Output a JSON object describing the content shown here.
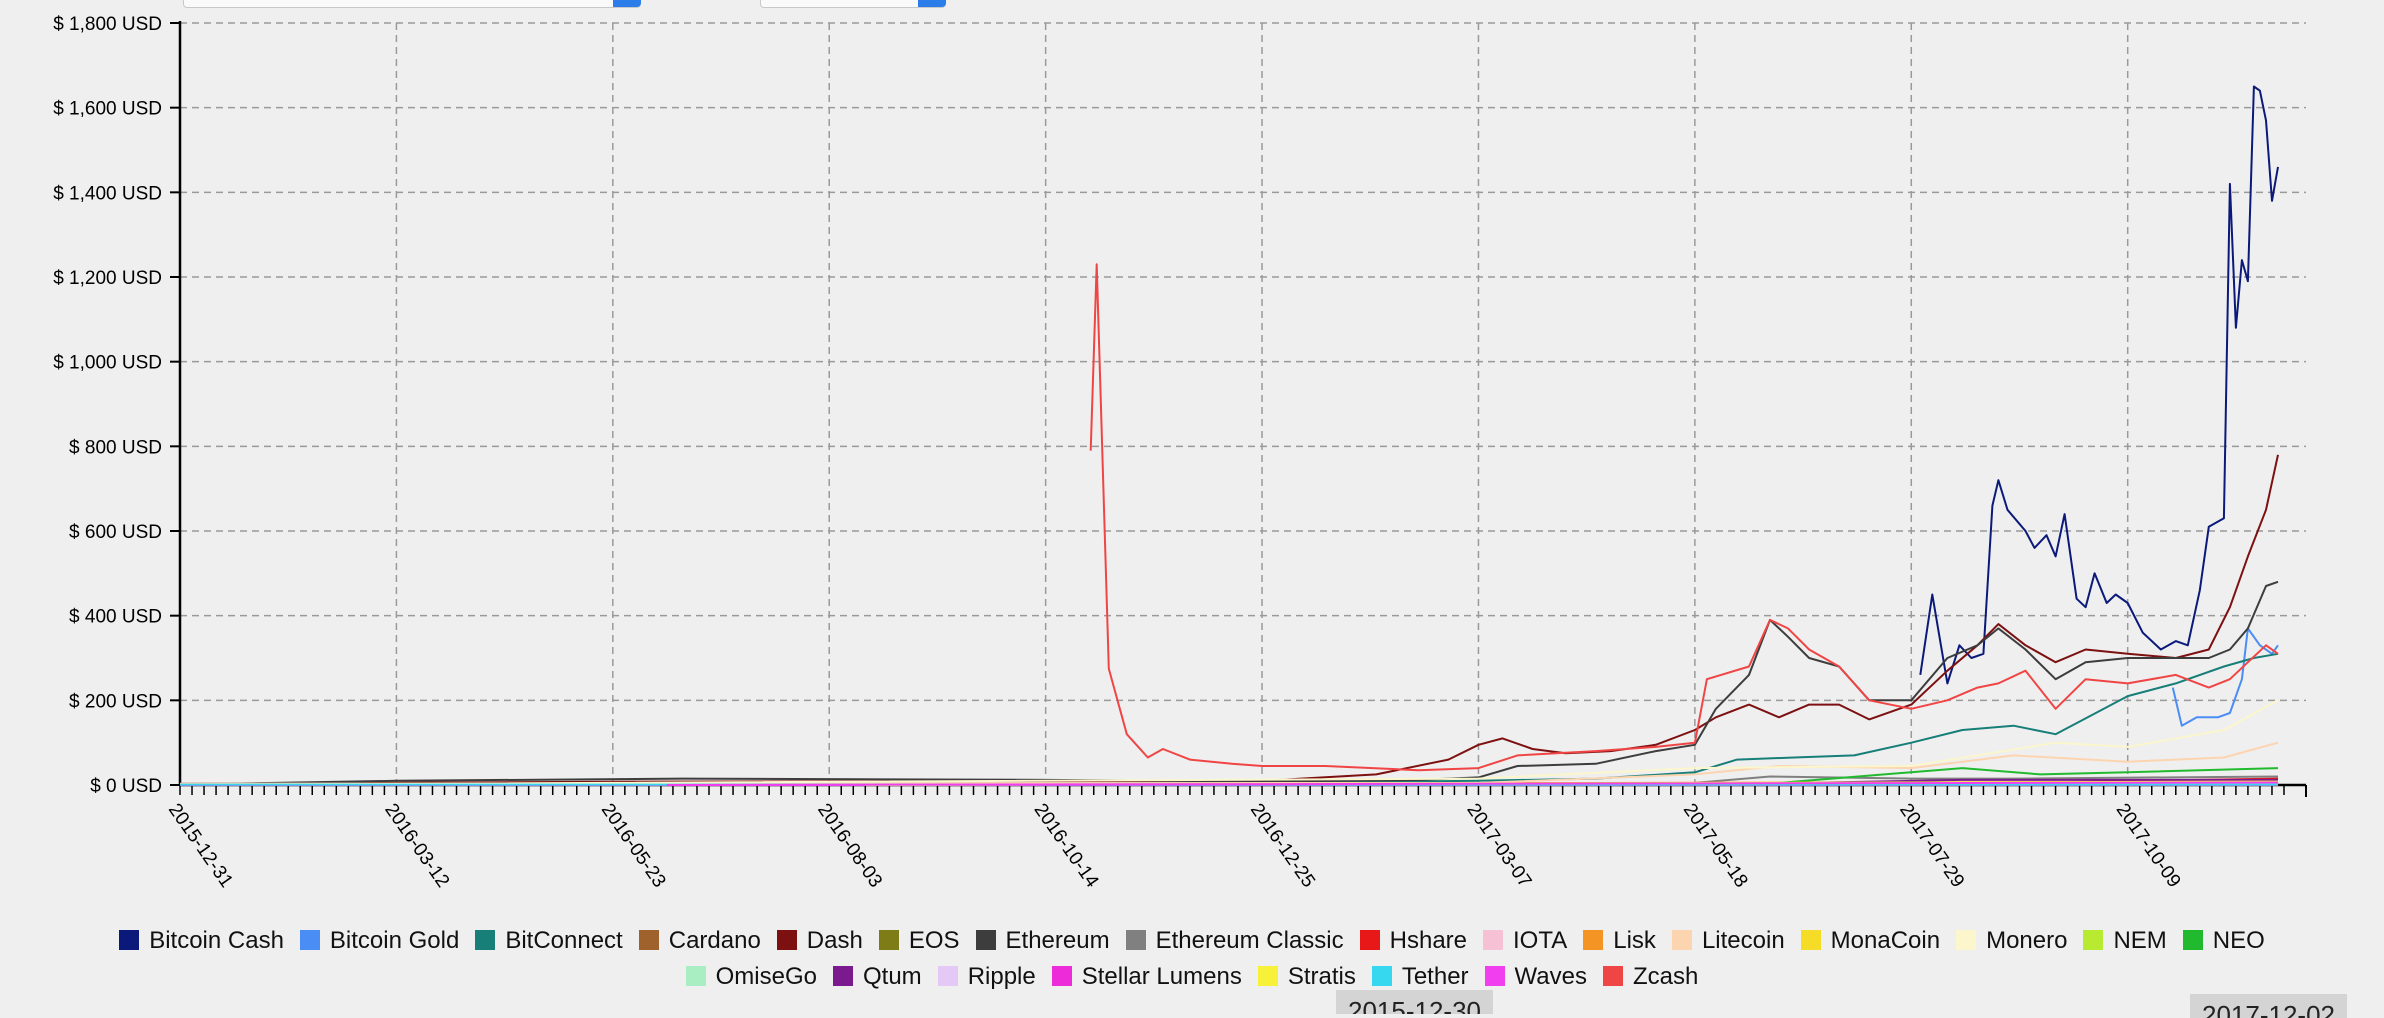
{
  "controls": {
    "select_a": {
      "value": ""
    },
    "select_b": {
      "value": ""
    }
  },
  "slider_labels": {
    "start": "2015-12-30",
    "end": "2017-12-02"
  },
  "chart_data": {
    "type": "line",
    "title": "",
    "xlabel": "",
    "ylabel": "",
    "x_range": [
      "2015-12-31",
      "2017-12-02"
    ],
    "ylim": [
      0,
      1800
    ],
    "grid": true,
    "legend_placement": "bottom",
    "y_ticks": [
      "$ 0 USD",
      "$ 200 USD",
      "$ 400 USD",
      "$ 600 USD",
      "$ 800 USD",
      "$ 1,000 USD",
      "$ 1,200 USD",
      "$ 1,400 USD",
      "$ 1,600 USD",
      "$ 1,800 USD"
    ],
    "y_tick_values": [
      0,
      200,
      400,
      600,
      800,
      1000,
      1200,
      1400,
      1600,
      1800
    ],
    "x_ticks": [
      "2015-12-31",
      "2016-03-12",
      "2016-05-23",
      "2016-08-03",
      "2016-10-14",
      "2016-12-25",
      "2017-03-07",
      "2017-05-18",
      "2017-07-29",
      "2017-10-09"
    ],
    "series": [
      {
        "name": "Bitcoin Cash",
        "color": "#0b1a7a",
        "points": [
          [
            "2017-08-01",
            260
          ],
          [
            "2017-08-05",
            450
          ],
          [
            "2017-08-10",
            240
          ],
          [
            "2017-08-14",
            330
          ],
          [
            "2017-08-18",
            300
          ],
          [
            "2017-08-22",
            310
          ],
          [
            "2017-08-25",
            660
          ],
          [
            "2017-08-27",
            720
          ],
          [
            "2017-08-30",
            650
          ],
          [
            "2017-09-05",
            600
          ],
          [
            "2017-09-08",
            560
          ],
          [
            "2017-09-12",
            590
          ],
          [
            "2017-09-15",
            540
          ],
          [
            "2017-09-18",
            640
          ],
          [
            "2017-09-22",
            440
          ],
          [
            "2017-09-25",
            420
          ],
          [
            "2017-09-28",
            500
          ],
          [
            "2017-10-02",
            430
          ],
          [
            "2017-10-05",
            450
          ],
          [
            "2017-10-09",
            430
          ],
          [
            "2017-10-14",
            360
          ],
          [
            "2017-10-20",
            320
          ],
          [
            "2017-10-25",
            340
          ],
          [
            "2017-10-29",
            330
          ],
          [
            "2017-11-02",
            460
          ],
          [
            "2017-11-05",
            610
          ],
          [
            "2017-11-10",
            630
          ],
          [
            "2017-11-12",
            1420
          ],
          [
            "2017-11-14",
            1080
          ],
          [
            "2017-11-16",
            1240
          ],
          [
            "2017-11-18",
            1190
          ],
          [
            "2017-11-20",
            1650
          ],
          [
            "2017-11-22",
            1640
          ],
          [
            "2017-11-24",
            1570
          ],
          [
            "2017-11-26",
            1380
          ],
          [
            "2017-11-28",
            1460
          ]
        ]
      },
      {
        "name": "Bitcoin Gold",
        "color": "#4a8df5",
        "points": [
          [
            "2017-10-24",
            230
          ],
          [
            "2017-10-27",
            140
          ],
          [
            "2017-11-01",
            160
          ],
          [
            "2017-11-08",
            160
          ],
          [
            "2017-11-12",
            170
          ],
          [
            "2017-11-16",
            250
          ],
          [
            "2017-11-18",
            370
          ],
          [
            "2017-11-22",
            330
          ],
          [
            "2017-11-26",
            310
          ],
          [
            "2017-11-28",
            330
          ]
        ]
      },
      {
        "name": "BitConnect",
        "color": "#177e78",
        "points": [
          [
            "2015-12-31",
            0
          ],
          [
            "2016-12-25",
            5
          ],
          [
            "2017-03-07",
            10
          ],
          [
            "2017-04-15",
            15
          ],
          [
            "2017-05-18",
            30
          ],
          [
            "2017-06-01",
            60
          ],
          [
            "2017-06-20",
            65
          ],
          [
            "2017-07-10",
            70
          ],
          [
            "2017-07-29",
            100
          ],
          [
            "2017-08-15",
            130
          ],
          [
            "2017-09-01",
            140
          ],
          [
            "2017-09-15",
            120
          ],
          [
            "2017-10-09",
            210
          ],
          [
            "2017-10-25",
            240
          ],
          [
            "2017-11-10",
            280
          ],
          [
            "2017-11-20",
            300
          ],
          [
            "2017-11-28",
            310
          ]
        ]
      },
      {
        "name": "Cardano",
        "color": "#a0622c",
        "points": [
          [
            "2017-10-01",
            2
          ],
          [
            "2017-11-28",
            5
          ]
        ]
      },
      {
        "name": "Dash",
        "color": "#7d1010",
        "points": [
          [
            "2015-12-31",
            3
          ],
          [
            "2016-06-01",
            8
          ],
          [
            "2016-12-25",
            10
          ],
          [
            "2017-02-01",
            25
          ],
          [
            "2017-02-25",
            60
          ],
          [
            "2017-03-07",
            95
          ],
          [
            "2017-03-15",
            110
          ],
          [
            "2017-03-25",
            85
          ],
          [
            "2017-04-05",
            75
          ],
          [
            "2017-04-20",
            80
          ],
          [
            "2017-05-05",
            95
          ],
          [
            "2017-05-18",
            130
          ],
          [
            "2017-05-25",
            160
          ],
          [
            "2017-06-05",
            190
          ],
          [
            "2017-06-15",
            160
          ],
          [
            "2017-06-25",
            190
          ],
          [
            "2017-07-05",
            190
          ],
          [
            "2017-07-15",
            155
          ],
          [
            "2017-07-29",
            190
          ],
          [
            "2017-08-10",
            270
          ],
          [
            "2017-08-20",
            330
          ],
          [
            "2017-08-27",
            380
          ],
          [
            "2017-09-05",
            330
          ],
          [
            "2017-09-15",
            290
          ],
          [
            "2017-09-25",
            320
          ],
          [
            "2017-10-09",
            310
          ],
          [
            "2017-10-25",
            300
          ],
          [
            "2017-11-05",
            320
          ],
          [
            "2017-11-12",
            420
          ],
          [
            "2017-11-18",
            540
          ],
          [
            "2017-11-24",
            650
          ],
          [
            "2017-11-28",
            780
          ]
        ]
      },
      {
        "name": "EOS",
        "color": "#7e7c17",
        "points": [
          [
            "2017-07-01",
            2
          ],
          [
            "2017-11-28",
            2
          ]
        ]
      },
      {
        "name": "Ethereum",
        "color": "#3d3d3d",
        "points": [
          [
            "2015-12-31",
            1
          ],
          [
            "2016-03-12",
            10
          ],
          [
            "2016-06-15",
            15
          ],
          [
            "2016-10-14",
            12
          ],
          [
            "2016-12-25",
            8
          ],
          [
            "2017-02-15",
            12
          ],
          [
            "2017-03-07",
            18
          ],
          [
            "2017-03-20",
            45
          ],
          [
            "2017-04-15",
            50
          ],
          [
            "2017-05-05",
            80
          ],
          [
            "2017-05-18",
            95
          ],
          [
            "2017-05-25",
            180
          ],
          [
            "2017-06-05",
            260
          ],
          [
            "2017-06-12",
            390
          ],
          [
            "2017-06-18",
            350
          ],
          [
            "2017-06-25",
            300
          ],
          [
            "2017-07-05",
            280
          ],
          [
            "2017-07-15",
            200
          ],
          [
            "2017-07-29",
            200
          ],
          [
            "2017-08-10",
            300
          ],
          [
            "2017-08-20",
            330
          ],
          [
            "2017-08-27",
            370
          ],
          [
            "2017-09-05",
            320
          ],
          [
            "2017-09-15",
            250
          ],
          [
            "2017-09-25",
            290
          ],
          [
            "2017-10-09",
            300
          ],
          [
            "2017-10-25",
            300
          ],
          [
            "2017-11-05",
            300
          ],
          [
            "2017-11-12",
            320
          ],
          [
            "2017-11-18",
            370
          ],
          [
            "2017-11-24",
            470
          ],
          [
            "2017-11-28",
            480
          ]
        ]
      },
      {
        "name": "Ethereum Classic",
        "color": "#808080",
        "points": [
          [
            "2016-07-24",
            1
          ],
          [
            "2017-05-18",
            5
          ],
          [
            "2017-06-12",
            20
          ],
          [
            "2017-07-29",
            15
          ],
          [
            "2017-09-01",
            15
          ],
          [
            "2017-11-28",
            20
          ]
        ]
      },
      {
        "name": "Hshare",
        "color": "#e81818",
        "points": [
          [
            "2017-09-01",
            5
          ],
          [
            "2017-11-28",
            15
          ]
        ]
      },
      {
        "name": "IOTA",
        "color": "#f6c1d5",
        "points": [
          [
            "2017-06-15",
            1
          ],
          [
            "2017-11-28",
            4
          ]
        ]
      },
      {
        "name": "Lisk",
        "color": "#f39425",
        "points": [
          [
            "2016-05-24",
            0
          ],
          [
            "2017-11-28",
            8
          ]
        ]
      },
      {
        "name": "Litecoin",
        "color": "#fcd4b0",
        "points": [
          [
            "2015-12-31",
            3
          ],
          [
            "2017-03-07",
            5
          ],
          [
            "2017-05-18",
            25
          ],
          [
            "2017-06-15",
            45
          ],
          [
            "2017-07-29",
            40
          ],
          [
            "2017-09-01",
            70
          ],
          [
            "2017-10-09",
            55
          ],
          [
            "2017-11-10",
            65
          ],
          [
            "2017-11-28",
            100
          ]
        ]
      },
      {
        "name": "MonaCoin",
        "color": "#f5dd27",
        "points": [
          [
            "2017-03-07",
            0
          ],
          [
            "2017-11-28",
            8
          ]
        ]
      },
      {
        "name": "Monero",
        "color": "#fbf6cc",
        "points": [
          [
            "2015-12-31",
            0
          ],
          [
            "2017-03-07",
            15
          ],
          [
            "2017-05-18",
            40
          ],
          [
            "2017-07-29",
            45
          ],
          [
            "2017-09-15",
            100
          ],
          [
            "2017-10-09",
            90
          ],
          [
            "2017-11-10",
            130
          ],
          [
            "2017-11-28",
            200
          ]
        ]
      },
      {
        "name": "NEM",
        "color": "#b8ea32",
        "points": [
          [
            "2015-12-31",
            0
          ],
          [
            "2017-11-28",
            0.3
          ]
        ]
      },
      {
        "name": "NEO",
        "color": "#21ba2e",
        "points": [
          [
            "2016-10-14",
            0
          ],
          [
            "2017-06-15",
            5
          ],
          [
            "2017-08-15",
            40
          ],
          [
            "2017-09-10",
            25
          ],
          [
            "2017-10-09",
            30
          ],
          [
            "2017-11-28",
            40
          ]
        ]
      },
      {
        "name": "OmiseGo",
        "color": "#a8eec2",
        "points": [
          [
            "2017-07-15",
            1
          ],
          [
            "2017-11-28",
            8
          ]
        ]
      },
      {
        "name": "Qtum",
        "color": "#7b1a8f",
        "points": [
          [
            "2017-05-25",
            1
          ],
          [
            "2017-08-15",
            12
          ],
          [
            "2017-11-28",
            12
          ]
        ]
      },
      {
        "name": "Ripple",
        "color": "#e4c8f5",
        "points": [
          [
            "2015-12-31",
            0
          ],
          [
            "2017-11-28",
            0.3
          ]
        ]
      },
      {
        "name": "Stellar Lumens",
        "color": "#ee2bd8",
        "points": [
          [
            "2015-12-31",
            0
          ],
          [
            "2017-11-28",
            0.1
          ]
        ]
      },
      {
        "name": "Stratis",
        "color": "#f7f13a",
        "points": [
          [
            "2016-08-15",
            0
          ],
          [
            "2017-11-28",
            8
          ]
        ]
      },
      {
        "name": "Tether",
        "color": "#36d8ef",
        "points": [
          [
            "2015-12-31",
            1
          ],
          [
            "2017-11-28",
            1
          ]
        ]
      },
      {
        "name": "Waves",
        "color": "#f13ff0",
        "points": [
          [
            "2016-06-10",
            0
          ],
          [
            "2017-11-28",
            6
          ]
        ]
      },
      {
        "name": "Zcash",
        "color": "#f04545",
        "points": [
          [
            "2016-10-29",
            790
          ],
          [
            "2016-10-31",
            1230
          ],
          [
            "2016-11-04",
            275
          ],
          [
            "2016-11-10",
            120
          ],
          [
            "2016-11-17",
            65
          ],
          [
            "2016-11-22",
            85
          ],
          [
            "2016-12-01",
            60
          ],
          [
            "2016-12-15",
            50
          ],
          [
            "2016-12-25",
            45
          ],
          [
            "2017-01-15",
            45
          ],
          [
            "2017-02-15",
            35
          ],
          [
            "2017-03-07",
            40
          ],
          [
            "2017-03-20",
            70
          ],
          [
            "2017-04-15",
            80
          ],
          [
            "2017-05-05",
            90
          ],
          [
            "2017-05-18",
            100
          ],
          [
            "2017-05-22",
            250
          ],
          [
            "2017-06-05",
            280
          ],
          [
            "2017-06-12",
            390
          ],
          [
            "2017-06-18",
            370
          ],
          [
            "2017-06-25",
            320
          ],
          [
            "2017-07-05",
            280
          ],
          [
            "2017-07-15",
            200
          ],
          [
            "2017-07-29",
            180
          ],
          [
            "2017-08-10",
            200
          ],
          [
            "2017-08-20",
            230
          ],
          [
            "2017-08-27",
            240
          ],
          [
            "2017-09-05",
            270
          ],
          [
            "2017-09-15",
            180
          ],
          [
            "2017-09-25",
            250
          ],
          [
            "2017-10-09",
            240
          ],
          [
            "2017-10-25",
            260
          ],
          [
            "2017-11-05",
            230
          ],
          [
            "2017-11-12",
            250
          ],
          [
            "2017-11-18",
            290
          ],
          [
            "2017-11-24",
            330
          ],
          [
            "2017-11-28",
            310
          ]
        ]
      }
    ]
  }
}
